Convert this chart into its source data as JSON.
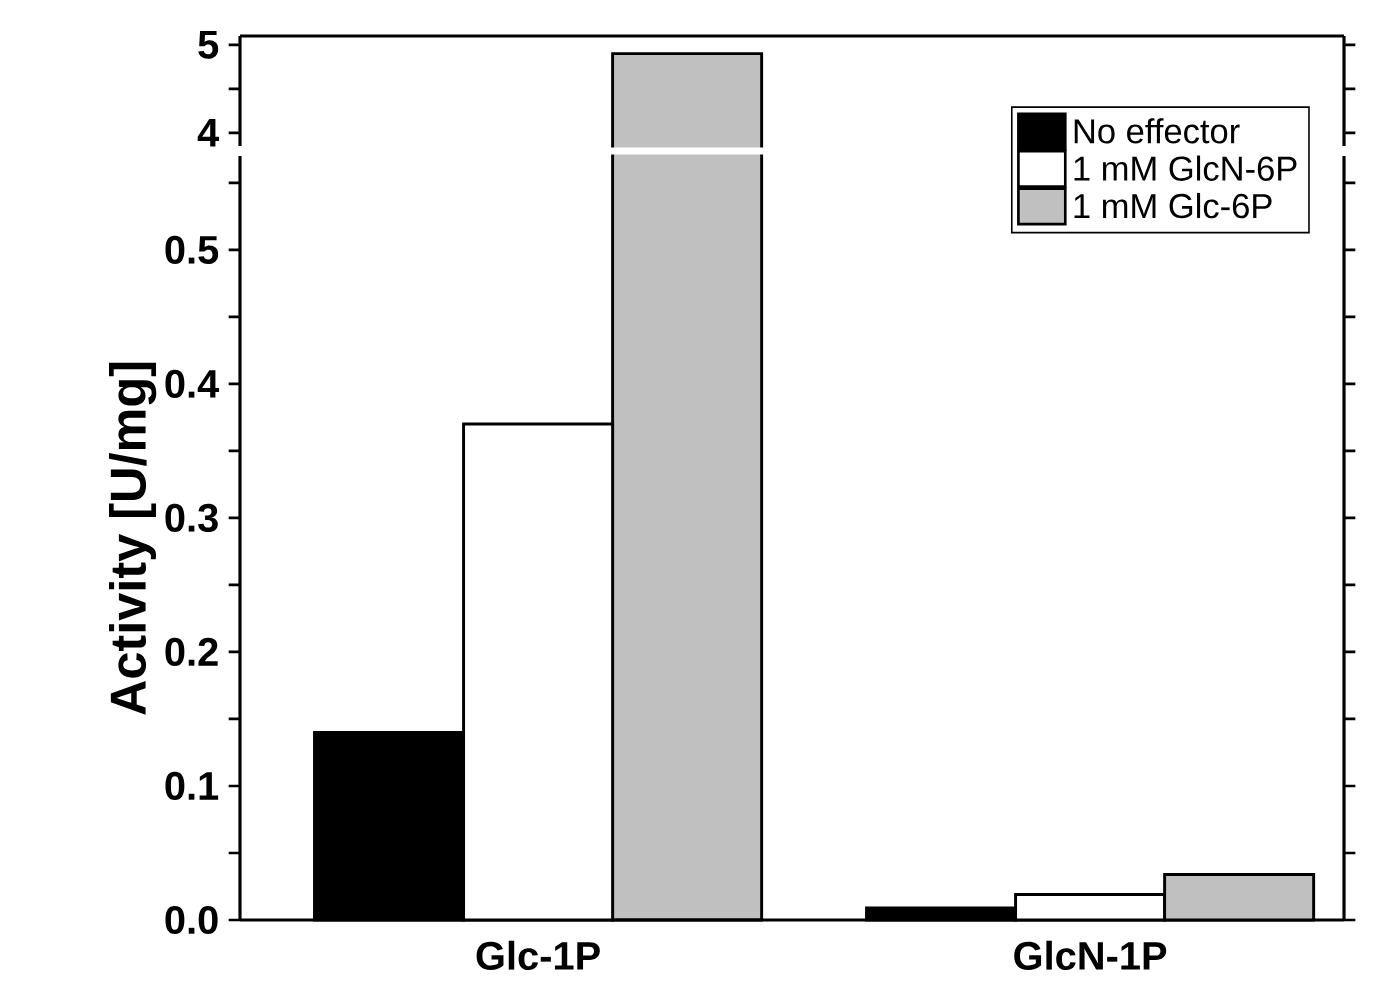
{
  "chart_data": [
    {
      "type": "bar",
      "categories": [
        null,
        null
      ],
      "series": [
        {
          "color": "#000000",
          "values": [
            null,
            null
          ]
        },
        {
          "color": "#ffffff",
          "values": [
            null,
            null
          ]
        },
        {
          "color": "#c0c0c0",
          "values": [
            4.9,
            null
          ]
        }
      ],
      "ylim": [
        3.85,
        5.1
      ],
      "yticks": [
        4,
        {
          "value": 4.5,
          "label": null
        },
        5
      ],
      "tick_labels": "y"
    },
    {
      "type": "bar",
      "categories": [
        "Glc-1P",
        "GlcN-1P"
      ],
      "ylabel": "Activity [U/mg]",
      "series": [
        {
          "name": "No effector",
          "color": "#000000",
          "values": [
            0.14,
            0.009
          ]
        },
        {
          "name": "1 mM GlcN-6P",
          "color": "#ffffff",
          "values": [
            0.37,
            0.019
          ]
        },
        {
          "name": "1 mM Glc-6P",
          "color": "#c0c0c0",
          "values": [
            null,
            0.034
          ]
        }
      ],
      "ylim": [
        0,
        0.57
      ],
      "yticks": [
        {
          "value": 0,
          "label": "0.0"
        },
        {
          "value": 0.05,
          "label": null
        },
        {
          "value": 0.1,
          "label": "0.1"
        },
        {
          "value": 0.15,
          "label": null
        },
        {
          "value": 0.2,
          "label": "0.2"
        },
        {
          "value": 0.25,
          "label": null
        },
        {
          "value": 0.3,
          "label": "0.3"
        },
        {
          "value": 0.35,
          "label": null
        },
        {
          "value": 0.4,
          "label": "0.4"
        },
        {
          "value": 0.45,
          "label": null
        },
        {
          "value": 0.5,
          "label": "0.5"
        },
        {
          "value": 0.55,
          "label": null
        }
      ],
      "legend": "top right"
    }
  ]
}
